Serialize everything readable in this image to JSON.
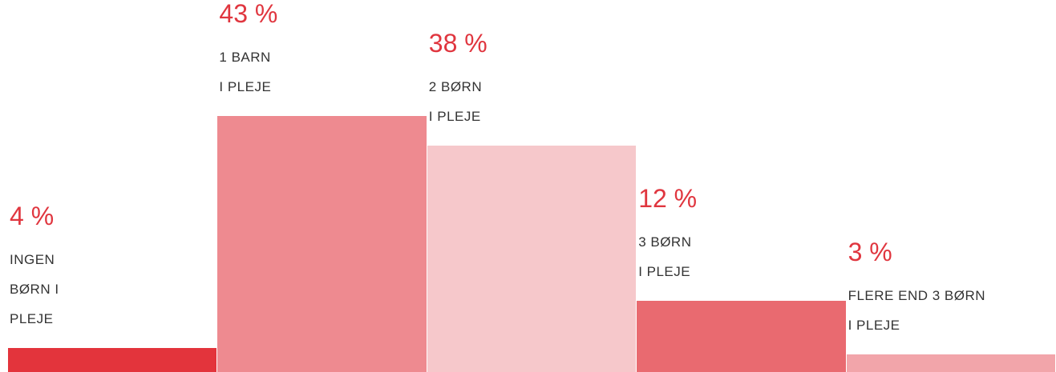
{
  "chart_data": {
    "type": "bar",
    "categories": [
      "INGEN\nBØRN I\nPLEJE",
      "1 BARN\nI PLEJE",
      "2 BØRN\nI PLEJE",
      "3 BØRN\nI PLEJE",
      "FLERE END 3 BØRN\nI PLEJE"
    ],
    "values": [
      4,
      43,
      38,
      12,
      3
    ],
    "value_labels": [
      "4 %",
      "43 %",
      "38 %",
      "12 %",
      "3 %"
    ],
    "colors": [
      "#e3343c",
      "#ee8a90",
      "#f6c8cb",
      "#e96a70",
      "#f2a5aa"
    ]
  }
}
